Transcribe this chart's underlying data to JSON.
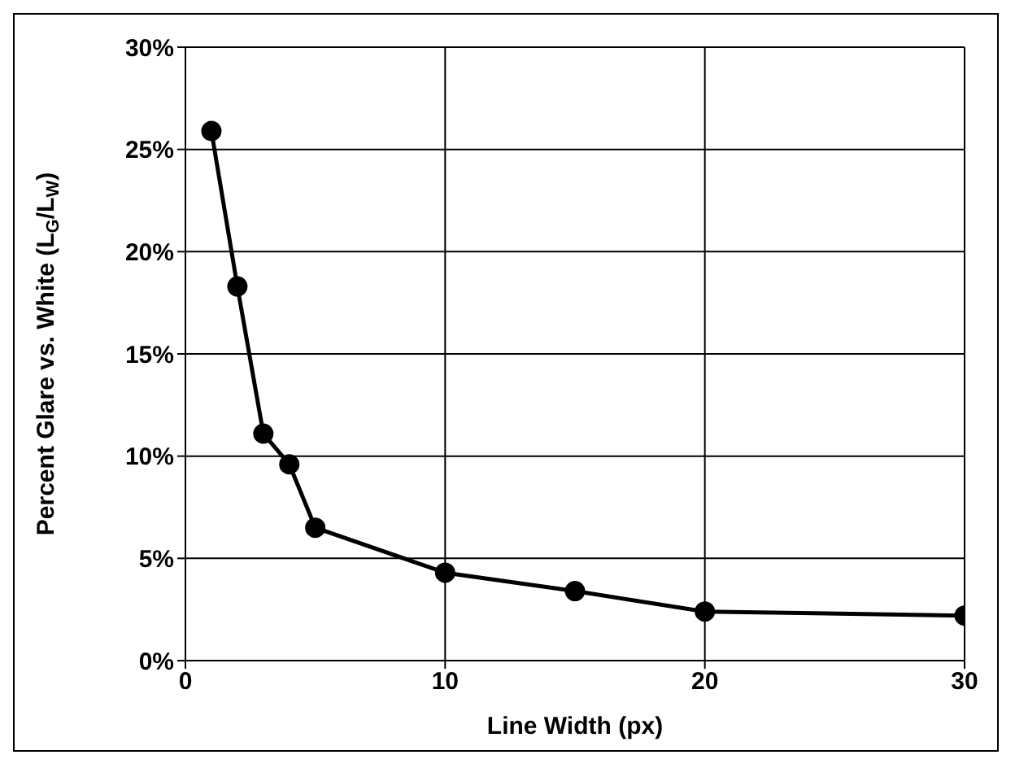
{
  "chart_data": {
    "type": "line",
    "xlabel": "Line Width (px)",
    "ylabel": "Percent Glare vs. White (L$_{G}$/L$_{W}$)",
    "x": [
      1,
      2,
      3,
      4,
      5,
      10,
      15,
      20,
      30
    ],
    "series": [
      {
        "color": "#000000",
        "values": [
          25.9,
          18.3,
          11.1,
          9.6,
          6.5,
          4.3,
          3.4,
          2.4,
          2.2
        ]
      }
    ],
    "xlim": [
      0,
      30
    ],
    "xticks": [
      0,
      10,
      20,
      30
    ],
    "ylim": [
      0,
      30
    ],
    "yticks": [
      {
        "value": 0,
        "label": "0%"
      },
      {
        "value": 5,
        "label": "5%"
      },
      {
        "value": 10,
        "label": "10%"
      },
      {
        "value": 15,
        "label": "15%"
      },
      {
        "value": 20,
        "label": "20%"
      },
      {
        "value": 25,
        "label": "25%"
      },
      {
        "value": 30,
        "label": "30%"
      }
    ],
    "grid": true,
    "marker": "circle",
    "line_style": "solid"
  }
}
